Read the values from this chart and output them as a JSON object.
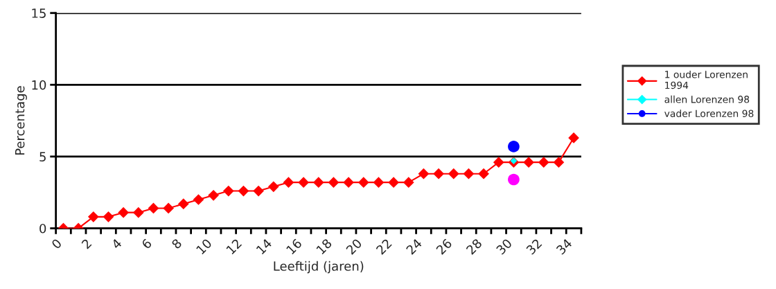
{
  "chart_data": {
    "type": "line",
    "xlabel": "Leeftijd (jaren)",
    "ylabel": "Percentage",
    "xlim": [
      0,
      35
    ],
    "ylim": [
      0,
      15
    ],
    "yticks": [
      0,
      5,
      10,
      15
    ],
    "xticks": [
      0,
      {
        "value": 1,
        "label": null
      },
      2,
      {
        "value": 3,
        "label": null
      },
      4,
      {
        "value": 5,
        "label": null
      },
      6,
      {
        "value": 7,
        "label": null
      },
      8,
      {
        "value": 9,
        "label": null
      },
      10,
      {
        "value": 11,
        "label": null
      },
      12,
      {
        "value": 13,
        "label": null
      },
      14,
      {
        "value": 15,
        "label": null
      },
      16,
      {
        "value": 17,
        "label": null
      },
      18,
      {
        "value": 19,
        "label": null
      },
      20,
      {
        "value": 21,
        "label": null
      },
      22,
      {
        "value": 23,
        "label": null
      },
      24,
      {
        "value": 25,
        "label": null
      },
      26,
      {
        "value": 27,
        "label": null
      },
      28,
      {
        "value": 29,
        "label": null
      },
      30,
      {
        "value": 31,
        "label": null
      },
      32,
      {
        "value": 33,
        "label": null
      },
      34,
      {
        "value": 35,
        "label": null
      }
    ],
    "grid": "y",
    "legend": "right",
    "series": [
      {
        "name": "1 ouder Lorenzen\n1994",
        "color": "#ff0000",
        "marker": "diamond",
        "x": [
          0.5,
          1.5,
          2.5,
          3.5,
          4.5,
          5.5,
          6.5,
          7.5,
          8.5,
          9.5,
          10.5,
          11.5,
          12.5,
          13.5,
          14.5,
          15.5,
          16.5,
          17.5,
          18.5,
          19.5,
          20.5,
          21.5,
          22.5,
          23.5,
          24.5,
          25.5,
          26.5,
          27.5,
          28.5,
          29.5,
          30.5,
          31.5,
          32.5,
          33.5,
          34.5
        ],
        "values": [
          0,
          0,
          0.8,
          0.8,
          1.1,
          1.1,
          1.4,
          1.4,
          1.7,
          2.0,
          2.3,
          2.6,
          2.6,
          2.6,
          2.9,
          3.2,
          3.2,
          3.2,
          3.2,
          3.2,
          3.2,
          3.2,
          3.2,
          3.2,
          3.8,
          3.8,
          3.8,
          3.8,
          3.8,
          4.6,
          4.6,
          4.6,
          4.6,
          4.6,
          6.3
        ]
      },
      {
        "name": "allen Lorenzen 98",
        "color": "#00ffff",
        "marker": "diamond",
        "x": [
          30.5
        ],
        "values": [
          4.7
        ]
      },
      {
        "name": "vader Lorenzen 98",
        "color": "#0000ff",
        "marker": "circle",
        "x": [
          30.5
        ],
        "values": [
          5.7
        ]
      },
      {
        "color": "#ff00ff",
        "marker": "circle",
        "x": [
          30.5
        ],
        "values": [
          3.4
        ]
      }
    ]
  }
}
